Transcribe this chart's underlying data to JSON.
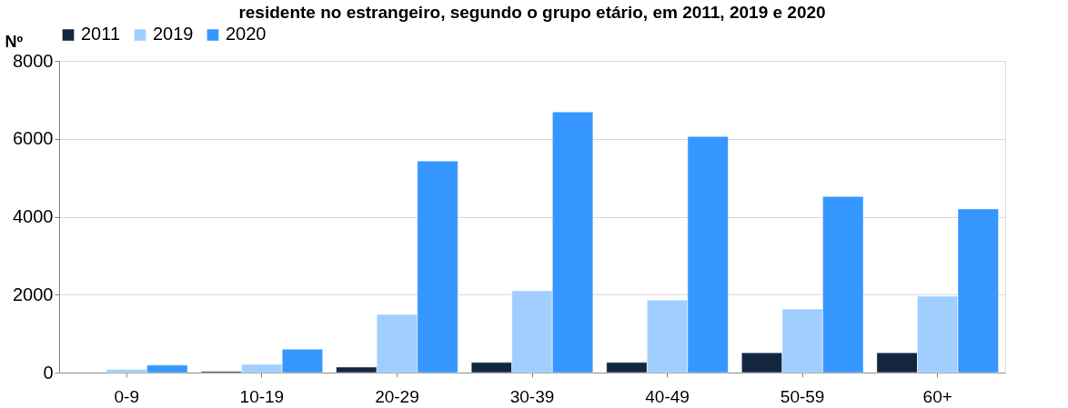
{
  "chart_data": {
    "type": "bar",
    "title": "residente no estrangeiro, segundo o grupo etário, em 2011, 2019 e 2020",
    "ylabel": "Nº",
    "categories": [
      "0-9",
      "10-19",
      "20-29",
      "30-39",
      "40-49",
      "50-59",
      "60+"
    ],
    "series": [
      {
        "name": "2011",
        "color": "#12263f",
        "values": [
          null,
          30,
          140,
          260,
          260,
          510,
          510
        ]
      },
      {
        "name": "2019",
        "color": "#a0cfff",
        "values": [
          80,
          210,
          1490,
          2100,
          1860,
          1630,
          1960
        ]
      },
      {
        "name": "2020",
        "color": "#3597ff",
        "values": [
          190,
          600,
          5430,
          6690,
          6060,
          4520,
          4200
        ]
      }
    ],
    "ylim": [
      0,
      8000
    ],
    "yticks": [
      0,
      2000,
      4000,
      6000,
      8000
    ],
    "grid": "y",
    "legend": "top"
  }
}
